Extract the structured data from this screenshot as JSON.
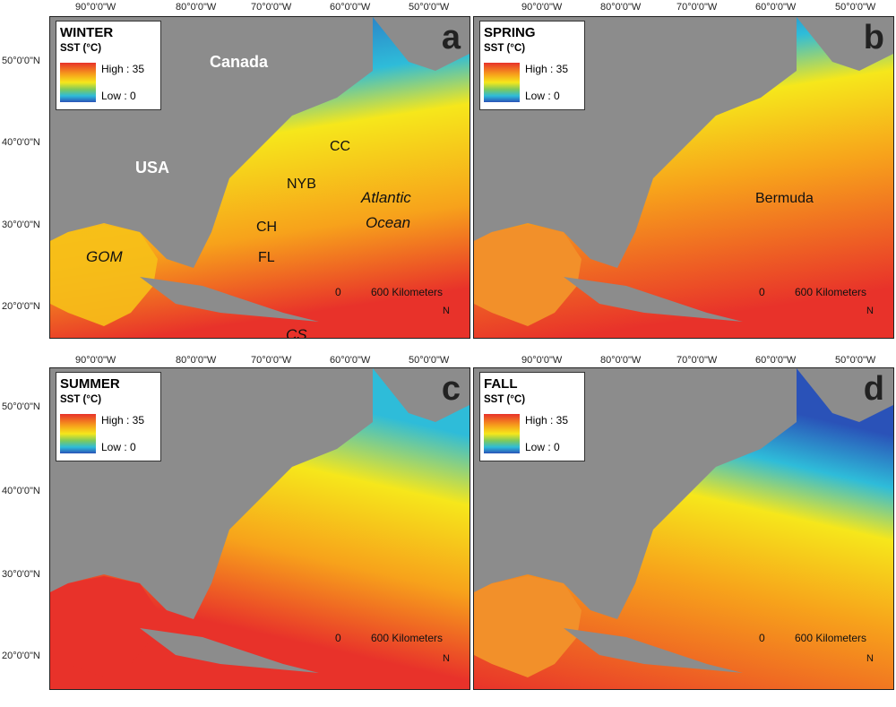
{
  "axes": {
    "top_left_lon": [
      "90°0'0\"W",
      "80°0'0\"W",
      "70°0'0\"W",
      "60°0'0\"W",
      "50°0'0\"W"
    ],
    "top_right_lon": [
      "90°0'0\"W",
      "80°0'0\"W",
      "70°0'0\"W",
      "60°0'0\"W",
      "50°0'0\"W"
    ],
    "bottom_left_lon": [
      "90°0'0\"W",
      "80°0'0\"W",
      "70°0'0\"W",
      "60°0'0\"W",
      "50°0'0\"W"
    ],
    "bottom_right_lon": [
      "90°0'0\"W",
      "80°0'0\"W",
      "70°0'0\"W",
      "60°0'0\"W",
      "50°0'0\"W"
    ],
    "top_lat": [
      "50°0'0\"N",
      "40°0'0\"N",
      "30°0'0\"N",
      "20°0'0\"N"
    ],
    "bottom_lat": [
      "50°0'0\"N",
      "40°0'0\"N",
      "30°0'0\"N",
      "20°0'0\"N"
    ]
  },
  "legend_common": {
    "sst_label": "SST (°C)",
    "high": "High : 35",
    "low": "Low : 0"
  },
  "panels": {
    "a": {
      "season": "WINTER",
      "letter": "a"
    },
    "b": {
      "season": "SPRING",
      "letter": "b"
    },
    "c": {
      "season": "SUMMER",
      "letter": "c"
    },
    "d": {
      "season": "FALL",
      "letter": "d"
    }
  },
  "map_labels": {
    "canada": "Canada",
    "usa": "USA",
    "gom": "GOM",
    "cs": "CS",
    "atlantic": "Atlantic",
    "ocean": "Ocean",
    "cc": "CC",
    "nyb": "NYB",
    "ch": "CH",
    "fl": "FL",
    "bermuda": "Bermuda"
  },
  "scale": {
    "zero": "0",
    "distance": "600 Kilometers"
  },
  "north": "N",
  "colors": {
    "land": "#8c8c8c",
    "cold": "#2a52b8",
    "warm": "#e8322a",
    "mid": "#f6e71b"
  }
}
